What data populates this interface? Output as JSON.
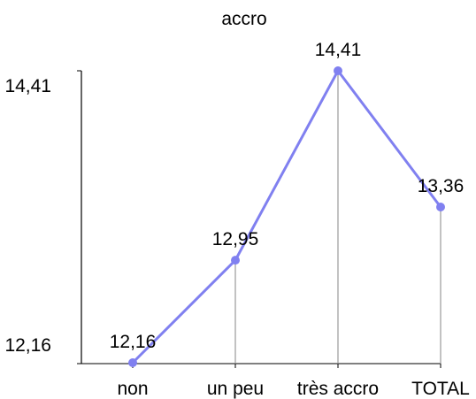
{
  "chart_data": {
    "type": "line",
    "title": "accro",
    "categories": [
      "non",
      "un peu",
      "très accro",
      "TOTAL"
    ],
    "series": [
      {
        "values": [
          12.16,
          12.95,
          14.41,
          13.36
        ]
      }
    ],
    "value_labels": [
      "12,16",
      "12,95",
      "14,41",
      "13,36"
    ],
    "y_tick_labels": [
      "12,16",
      "14,41"
    ],
    "ylim": [
      12.16,
      14.41
    ],
    "grid": false,
    "drop_lines": true,
    "colors": {
      "line": "#8080f0",
      "marker": "#8080f0",
      "drop_line": "#999999",
      "axis": "#000000"
    }
  }
}
